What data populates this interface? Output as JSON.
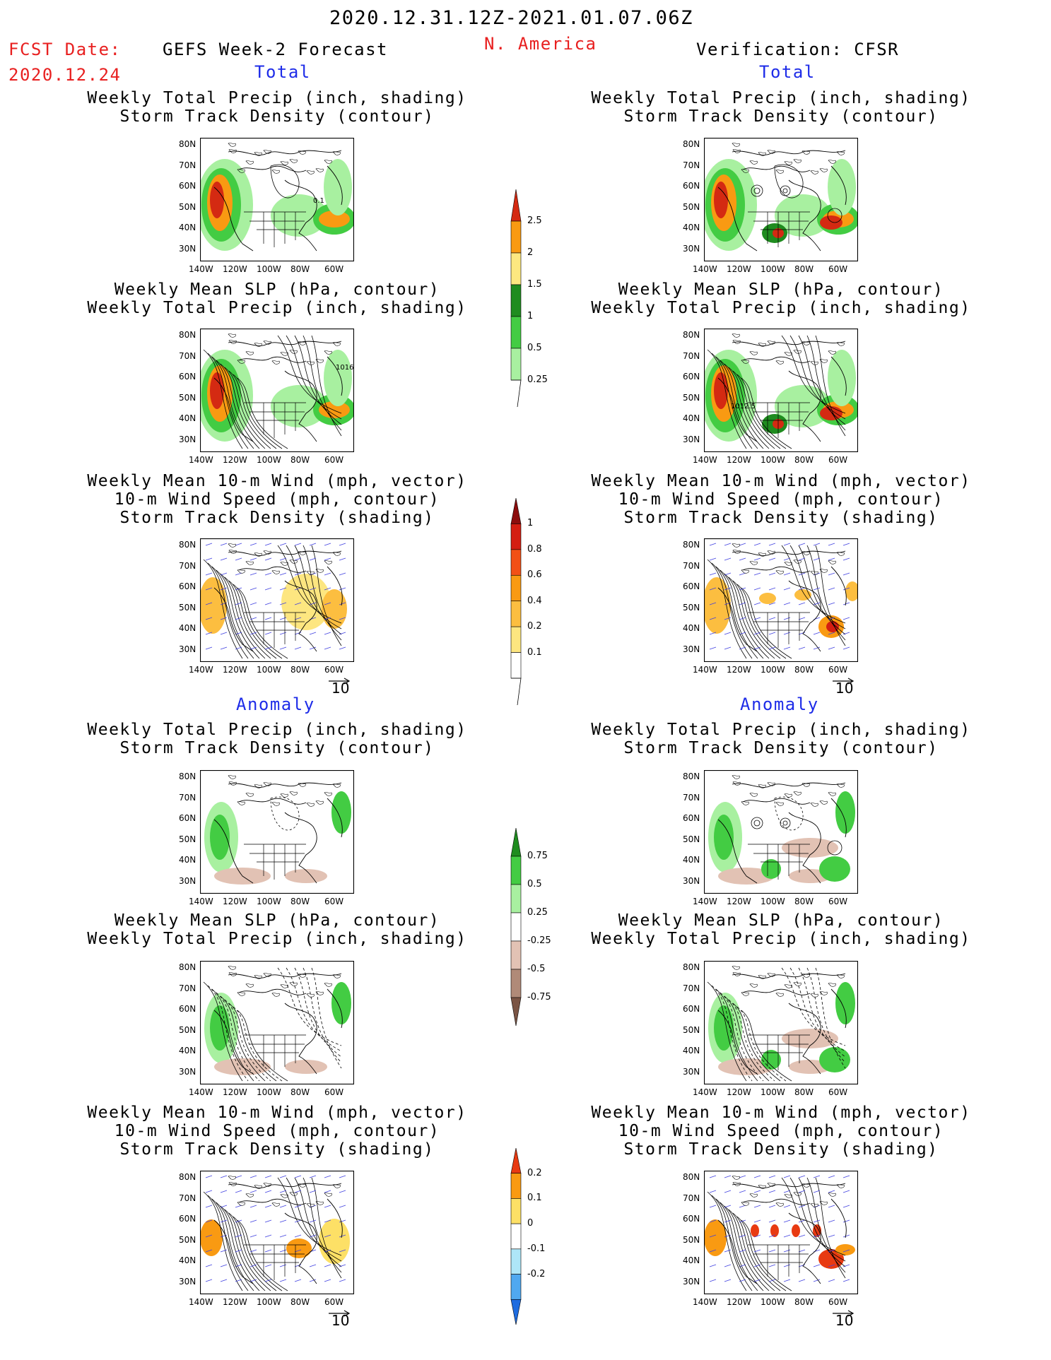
{
  "header": {
    "date_range": "2020.12.31.12Z-2021.01.07.06Z",
    "fcst_label": "FCST Date:",
    "fcst_date": "2020.12.24",
    "left_title": "GEFS Week-2 Forecast",
    "region": "N. America",
    "right_title": "Verification: CFSR"
  },
  "sections": {
    "total": "Total",
    "anomaly": "Anomaly"
  },
  "panel_titles": {
    "precip_track": [
      "Weekly Total Precip (inch, shading)",
      "Storm Track Density (contour)"
    ],
    "slp_precip": [
      "Weekly Mean SLP (hPa, contour)",
      "Weekly Total Precip (inch, shading)"
    ],
    "wind_track": [
      "Weekly Mean 10-m Wind (mph, vector)",
      "10-m Wind Speed (mph, contour)",
      "Storm Track Density (shading)"
    ]
  },
  "axes": {
    "lat_labels": [
      "80N",
      "70N",
      "60N",
      "50N",
      "40N",
      "30N"
    ],
    "lon_labels": [
      "140W",
      "120W",
      "100W",
      "80W",
      "60W"
    ]
  },
  "map_annotations": {
    "fcst_track_contour": "0.1",
    "fcst_slp_contour": "1016",
    "cfsr_slp_contour": "1012.5"
  },
  "vector_reference": "10",
  "colorbars": {
    "precip_total": {
      "labels": [
        "2.5",
        "2",
        "1.5",
        "1",
        "0.5",
        "0.25"
      ],
      "colors": [
        "#d42a12",
        "#f99a12",
        "#fde880",
        "#1f8c1f",
        "#43cc43",
        "#a8f0a0"
      ]
    },
    "track_total": {
      "labels": [
        "1",
        "0.8",
        "0.6",
        "0.4",
        "0.2",
        "0.1"
      ],
      "colors": [
        "#8c0d0d",
        "#d41e12",
        "#f25016",
        "#f99a12",
        "#fcbe40",
        "#fde680",
        "#ffffff"
      ]
    },
    "precip_anom": {
      "labels": [
        "0.75",
        "0.5",
        "0.25",
        "-0.25",
        "-0.5",
        "-0.75"
      ],
      "colors": [
        "#1f8c1f",
        "#43cc43",
        "#a8f0a0",
        "#ffffff",
        "#e2c2b4",
        "#b08a78",
        "#7a5444"
      ]
    },
    "track_anom": {
      "labels": [
        "0.2",
        "0.1",
        "0",
        "-0.1",
        "-0.2"
      ],
      "colors": [
        "#e83a12",
        "#f99a12",
        "#fde066",
        "#ffffff",
        "#aee6f8",
        "#50a8f0",
        "#1e6ce0"
      ]
    }
  }
}
